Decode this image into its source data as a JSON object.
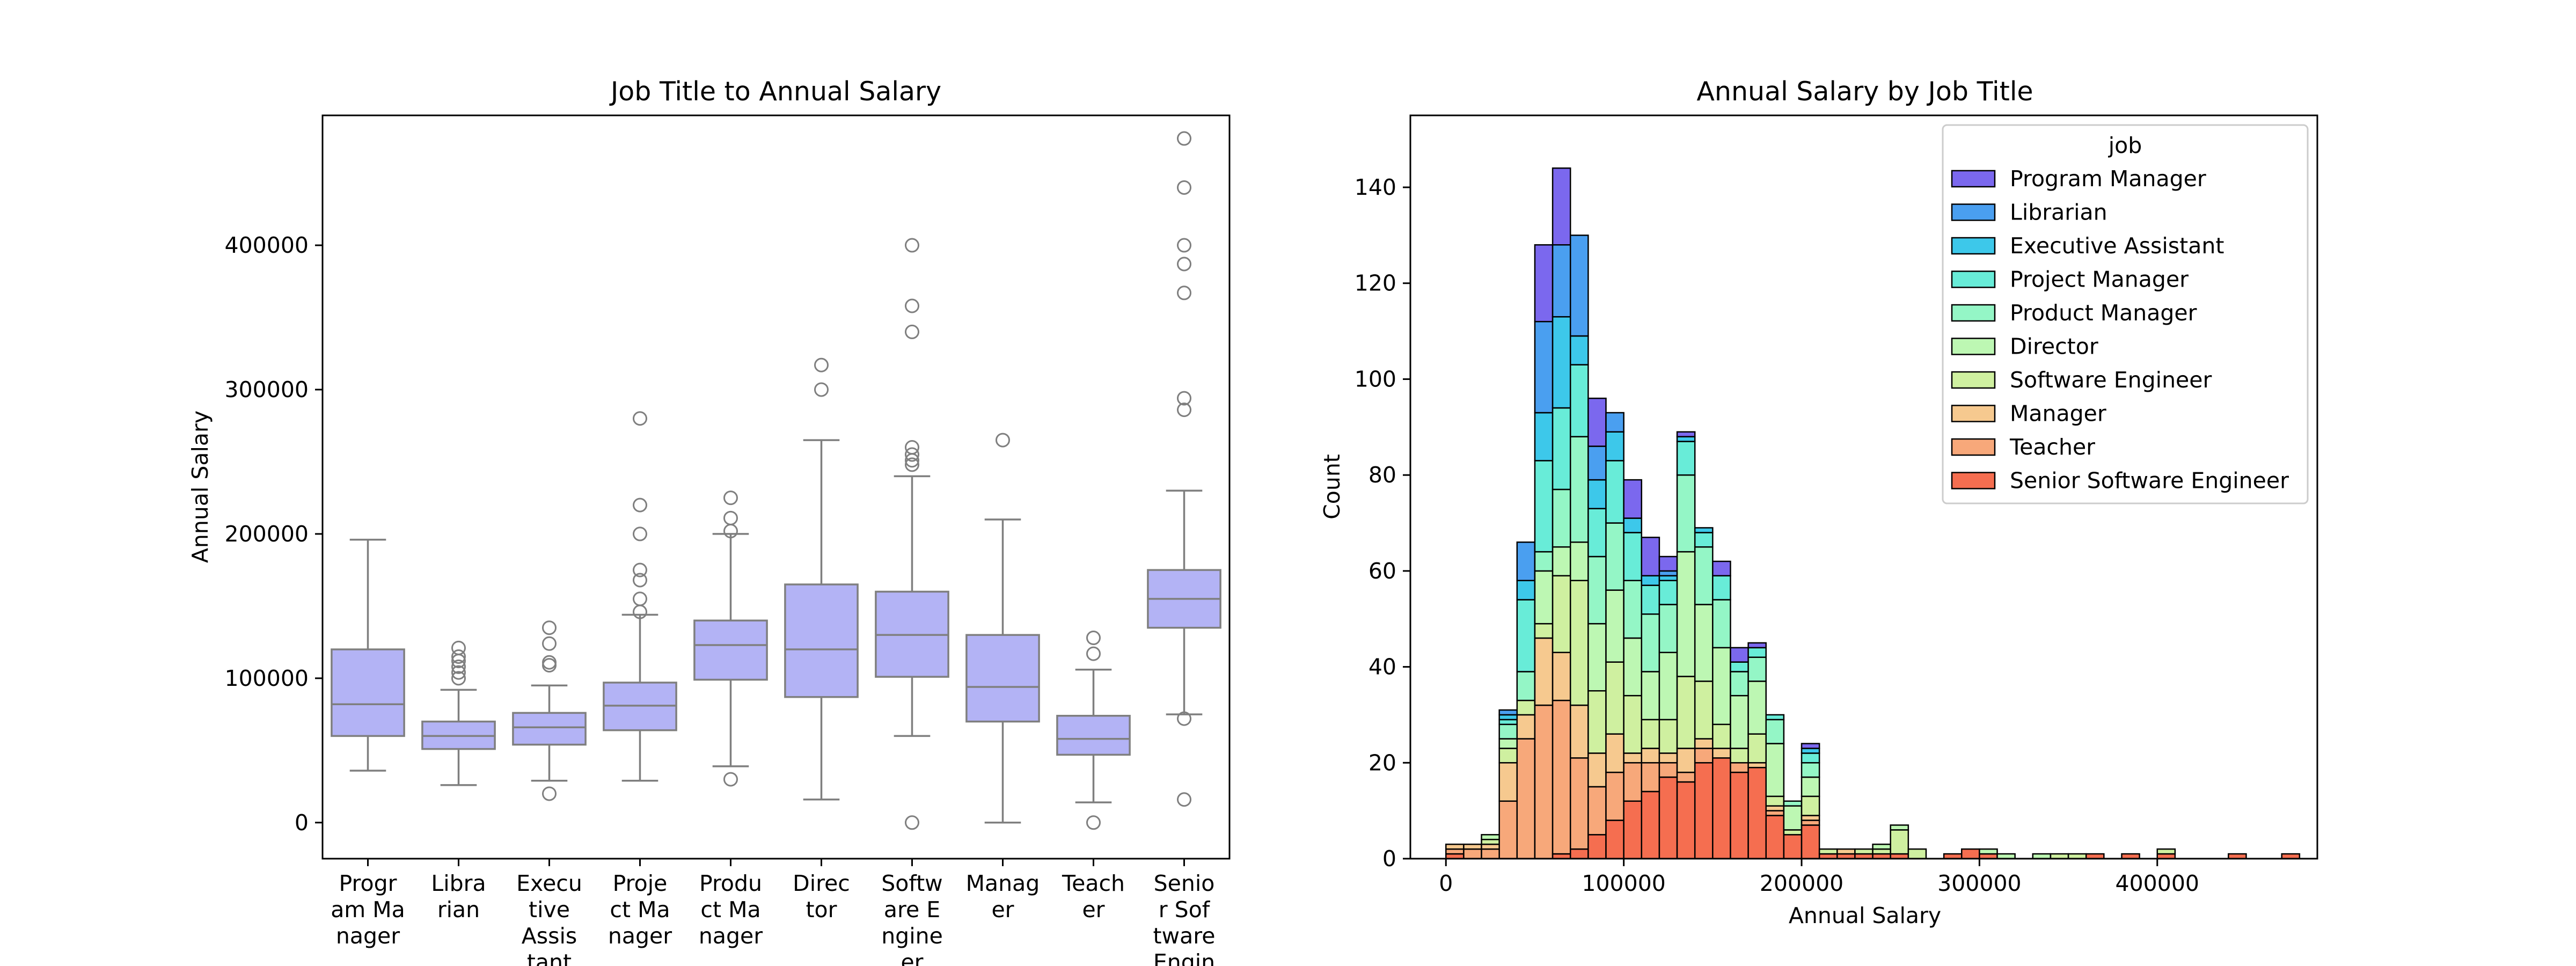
{
  "chart_data": [
    {
      "type": "box",
      "title": "Job Title to Annual Salary",
      "xlabel": "",
      "ylabel": "Annual Salary",
      "ylim": [
        -25000,
        490000
      ],
      "yticks": [
        0,
        100000,
        200000,
        300000,
        400000
      ],
      "ytick_labels": [
        "0",
        "100000",
        "200000",
        "300000",
        "400000"
      ],
      "box_color": "#b3b3f5",
      "line_color": "#7f7f7f",
      "grid": false,
      "categories": [
        {
          "label_lines": [
            "Progr",
            "am Ma",
            "nager"
          ],
          "whisker_low": 36000,
          "q1": 60000,
          "median": 82000,
          "q3": 120000,
          "whisker_high": 196000,
          "outliers": []
        },
        {
          "label_lines": [
            "Libra",
            "rian"
          ],
          "whisker_low": 26000,
          "q1": 51000,
          "median": 60000,
          "q3": 70000,
          "whisker_high": 92000,
          "outliers": [
            100000,
            104000,
            108000,
            112000,
            115000,
            121000
          ]
        },
        {
          "label_lines": [
            "Execu",
            "tive",
            "Assis",
            "tant"
          ],
          "whisker_low": 29000,
          "q1": 54000,
          "median": 66000,
          "q3": 76000,
          "whisker_high": 95000,
          "outliers": [
            20000,
            109000,
            111000,
            124000,
            135000
          ]
        },
        {
          "label_lines": [
            "Proje",
            "ct Ma",
            "nager"
          ],
          "whisker_low": 29000,
          "q1": 64000,
          "median": 81000,
          "q3": 97000,
          "whisker_high": 144000,
          "outliers": [
            146000,
            155000,
            168000,
            175000,
            200000,
            220000,
            280000
          ]
        },
        {
          "label_lines": [
            "Produ",
            "ct Ma",
            "nager"
          ],
          "whisker_low": 39000,
          "q1": 99000,
          "median": 123000,
          "q3": 140000,
          "whisker_high": 200000,
          "outliers": [
            30000,
            202000,
            211000,
            225000
          ]
        },
        {
          "label_lines": [
            "Direc",
            "tor"
          ],
          "whisker_low": 16000,
          "q1": 87000,
          "median": 120000,
          "q3": 165000,
          "whisker_high": 265000,
          "outliers": [
            300000,
            317000
          ]
        },
        {
          "label_lines": [
            "Softw",
            "are E",
            "ngine",
            "er"
          ],
          "whisker_low": 60000,
          "q1": 101000,
          "median": 130000,
          "q3": 160000,
          "whisker_high": 240000,
          "outliers": [
            0,
            248000,
            251000,
            255000,
            260000,
            340000,
            358000,
            400000
          ]
        },
        {
          "label_lines": [
            "Manag",
            "er"
          ],
          "whisker_low": 0,
          "q1": 70000,
          "median": 94000,
          "q3": 130000,
          "whisker_high": 210000,
          "outliers": [
            265000
          ]
        },
        {
          "label_lines": [
            "Teach",
            "er"
          ],
          "whisker_low": 14000,
          "q1": 47000,
          "median": 58000,
          "q3": 74000,
          "whisker_high": 106000,
          "outliers": [
            0,
            117000,
            128000
          ]
        },
        {
          "label_lines": [
            "Senio",
            "r Sof",
            "tware",
            "Engin"
          ],
          "whisker_low": 75000,
          "q1": 135000,
          "median": 155000,
          "q3": 175000,
          "whisker_high": 230000,
          "outliers": [
            16000,
            72000,
            286000,
            294000,
            367000,
            387000,
            400000,
            440000,
            474000
          ]
        }
      ]
    },
    {
      "type": "stacked-histogram",
      "title": "Annual Salary by Job Title",
      "xlabel": "Annual Salary",
      "ylabel": "Count",
      "xlim": [
        -20000,
        490000
      ],
      "ylim": [
        0,
        155
      ],
      "xticks": [
        0,
        100000,
        200000,
        300000,
        400000
      ],
      "xtick_labels": [
        "0",
        "100000",
        "200000",
        "300000",
        "400000"
      ],
      "yticks": [
        0,
        20,
        40,
        60,
        80,
        100,
        120,
        140
      ],
      "ytick_labels": [
        "0",
        "20",
        "40",
        "60",
        "80",
        "100",
        "120",
        "140"
      ],
      "bin_start": 0,
      "bin_width": 10000,
      "legend_title": "job",
      "legend_position": "top-right",
      "series_order_bottom_to_top": [
        "Senior Software Engineer",
        "Teacher",
        "Manager",
        "Software Engineer",
        "Director",
        "Product Manager",
        "Project Manager",
        "Executive Assistant",
        "Librarian",
        "Program Manager"
      ],
      "series": [
        {
          "name": "Program Manager",
          "color": "#7b68ee"
        },
        {
          "name": "Librarian",
          "color": "#4a9ff0"
        },
        {
          "name": "Executive Assistant",
          "color": "#3dc8ea"
        },
        {
          "name": "Project Manager",
          "color": "#68ecd8"
        },
        {
          "name": "Product Manager",
          "color": "#94f6c6"
        },
        {
          "name": "Director",
          "color": "#bdf7b3"
        },
        {
          "name": "Software Engineer",
          "color": "#cff0a0"
        },
        {
          "name": "Manager",
          "color": "#f6c98f"
        },
        {
          "name": "Teacher",
          "color": "#f7a87a"
        },
        {
          "name": "Senior Software Engineer",
          "color": "#f56e50"
        }
      ],
      "bins": [
        {
          "x": 0,
          "layers": [
            1,
            1,
            1,
            0,
            0,
            0,
            0,
            0,
            0,
            0
          ]
        },
        {
          "x": 10000,
          "layers": [
            0,
            2,
            1,
            0,
            0,
            0,
            0,
            0,
            0,
            0
          ]
        },
        {
          "x": 20000,
          "layers": [
            0,
            2,
            1,
            1,
            1,
            0,
            0,
            0,
            0,
            0
          ]
        },
        {
          "x": 30000,
          "layers": [
            0,
            12,
            8,
            3,
            2,
            3,
            1,
            1,
            1,
            0
          ]
        },
        {
          "x": 40000,
          "layers": [
            0,
            25,
            5,
            3,
            0,
            6,
            15,
            4,
            8,
            0
          ]
        },
        {
          "x": 50000,
          "layers": [
            0,
            32,
            14,
            3,
            11,
            4,
            19,
            10,
            19,
            16
          ]
        },
        {
          "x": 60000,
          "layers": [
            1,
            32,
            10,
            16,
            6,
            12,
            17,
            19,
            15,
            16
          ]
        },
        {
          "x": 70000,
          "layers": [
            2,
            19,
            11,
            26,
            8,
            22,
            15,
            6,
            21,
            0
          ]
        },
        {
          "x": 80000,
          "layers": [
            5,
            10,
            7,
            13,
            14,
            14,
            10,
            6,
            7,
            10
          ]
        },
        {
          "x": 90000,
          "layers": [
            8,
            10,
            8,
            15,
            15,
            14,
            13,
            6,
            4,
            0
          ]
        },
        {
          "x": 100000,
          "layers": [
            12,
            8,
            2,
            12,
            12,
            12,
            10,
            3,
            0,
            8
          ]
        },
        {
          "x": 110000,
          "layers": [
            14,
            6,
            3,
            6,
            10,
            12,
            6,
            2,
            0,
            8
          ]
        },
        {
          "x": 120000,
          "layers": [
            17,
            3,
            2,
            7,
            14,
            10,
            5,
            1,
            1,
            3
          ]
        },
        {
          "x": 130000,
          "layers": [
            16,
            2,
            5,
            15,
            26,
            16,
            7,
            1,
            0,
            1
          ]
        },
        {
          "x": 140000,
          "layers": [
            20,
            3,
            2,
            12,
            16,
            12,
            3,
            1,
            0,
            0
          ]
        },
        {
          "x": 150000,
          "layers": [
            21,
            0,
            2,
            5,
            16,
            10,
            5,
            0,
            0,
            3
          ]
        },
        {
          "x": 160000,
          "layers": [
            18,
            2,
            0,
            3,
            11,
            5,
            2,
            0,
            0,
            3
          ]
        },
        {
          "x": 170000,
          "layers": [
            19,
            0,
            1,
            6,
            11,
            5,
            2,
            0,
            0,
            1
          ]
        },
        {
          "x": 180000,
          "layers": [
            9,
            1,
            1,
            2,
            11,
            5,
            1,
            0,
            0,
            0
          ]
        },
        {
          "x": 190000,
          "layers": [
            5,
            0,
            0,
            1,
            5,
            1,
            0,
            0,
            0,
            0
          ]
        },
        {
          "x": 200000,
          "layers": [
            7,
            1,
            1,
            4,
            4,
            3,
            2,
            1,
            0,
            1
          ]
        },
        {
          "x": 210000,
          "layers": [
            1,
            0,
            0,
            1,
            0,
            0,
            0,
            0,
            0,
            0
          ]
        },
        {
          "x": 220000,
          "layers": [
            1,
            0,
            1,
            0,
            0,
            0,
            0,
            0,
            0,
            0
          ]
        },
        {
          "x": 230000,
          "layers": [
            1,
            0,
            0,
            1,
            0,
            0,
            0,
            0,
            0,
            0
          ]
        },
        {
          "x": 240000,
          "layers": [
            1,
            0,
            0,
            1,
            1,
            0,
            0,
            0,
            0,
            0
          ]
        },
        {
          "x": 250000,
          "layers": [
            1,
            0,
            0,
            5,
            1,
            0,
            0,
            0,
            0,
            0
          ]
        },
        {
          "x": 260000,
          "layers": [
            0,
            0,
            0,
            2,
            0,
            0,
            0,
            0,
            0,
            0
          ]
        },
        {
          "x": 270000,
          "layers": [
            0,
            0,
            0,
            0,
            0,
            0,
            0,
            0,
            0,
            0
          ]
        },
        {
          "x": 280000,
          "layers": [
            1,
            0,
            0,
            0,
            0,
            0,
            0,
            0,
            0,
            0
          ]
        },
        {
          "x": 290000,
          "layers": [
            2,
            0,
            0,
            0,
            0,
            0,
            0,
            0,
            0,
            0
          ]
        },
        {
          "x": 300000,
          "layers": [
            1,
            0,
            0,
            0,
            1,
            0,
            0,
            0,
            0,
            0
          ]
        },
        {
          "x": 310000,
          "layers": [
            0,
            0,
            0,
            0,
            1,
            0,
            0,
            0,
            0,
            0
          ]
        },
        {
          "x": 320000,
          "layers": [
            0,
            0,
            0,
            0,
            0,
            0,
            0,
            0,
            0,
            0
          ]
        },
        {
          "x": 330000,
          "layers": [
            0,
            0,
            0,
            0,
            1,
            0,
            0,
            0,
            0,
            0
          ]
        },
        {
          "x": 340000,
          "layers": [
            0,
            0,
            0,
            1,
            0,
            0,
            0,
            0,
            0,
            0
          ]
        },
        {
          "x": 350000,
          "layers": [
            0,
            0,
            0,
            1,
            0,
            0,
            0,
            0,
            0,
            0
          ]
        },
        {
          "x": 360000,
          "layers": [
            1,
            0,
            0,
            0,
            0,
            0,
            0,
            0,
            0,
            0
          ]
        },
        {
          "x": 370000,
          "layers": [
            0,
            0,
            0,
            0,
            0,
            0,
            0,
            0,
            0,
            0
          ]
        },
        {
          "x": 380000,
          "layers": [
            1,
            0,
            0,
            0,
            0,
            0,
            0,
            0,
            0,
            0
          ]
        },
        {
          "x": 390000,
          "layers": [
            0,
            0,
            0,
            0,
            0,
            0,
            0,
            0,
            0,
            0
          ]
        },
        {
          "x": 400000,
          "layers": [
            1,
            0,
            0,
            1,
            0,
            0,
            0,
            0,
            0,
            0
          ]
        },
        {
          "x": 410000,
          "layers": [
            0,
            0,
            0,
            0,
            0,
            0,
            0,
            0,
            0,
            0
          ]
        },
        {
          "x": 420000,
          "layers": [
            0,
            0,
            0,
            0,
            0,
            0,
            0,
            0,
            0,
            0
          ]
        },
        {
          "x": 430000,
          "layers": [
            0,
            0,
            0,
            0,
            0,
            0,
            0,
            0,
            0,
            0
          ]
        },
        {
          "x": 440000,
          "layers": [
            1,
            0,
            0,
            0,
            0,
            0,
            0,
            0,
            0,
            0
          ]
        },
        {
          "x": 450000,
          "layers": [
            0,
            0,
            0,
            0,
            0,
            0,
            0,
            0,
            0,
            0
          ]
        },
        {
          "x": 460000,
          "layers": [
            0,
            0,
            0,
            0,
            0,
            0,
            0,
            0,
            0,
            0
          ]
        },
        {
          "x": 470000,
          "layers": [
            1,
            0,
            0,
            0,
            0,
            0,
            0,
            0,
            0,
            0
          ]
        }
      ]
    }
  ]
}
